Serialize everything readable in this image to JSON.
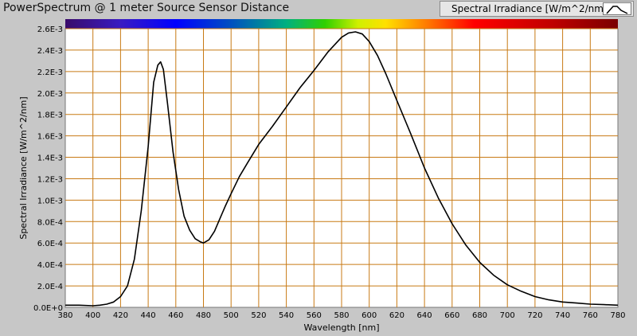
{
  "window": {
    "title": "PowerSpectrum @ 1 meter Source Sensor Distance"
  },
  "legend": {
    "label": "Spectral Irradiance [W/m^2/nm]",
    "swatch_icon": "line-plot-icon"
  },
  "chart_data": {
    "type": "line",
    "title": "PowerSpectrum @ 1 meter Source Sensor Distance",
    "xlabel": "Wavelength [nm]",
    "ylabel": "Spectral Irradiance [W/m^2/nm]",
    "xlim": [
      380,
      780
    ],
    "ylim": [
      0,
      0.0026
    ],
    "x_ticks": [
      "380",
      "400",
      "420",
      "440",
      "460",
      "480",
      "500",
      "520",
      "540",
      "560",
      "580",
      "600",
      "620",
      "640",
      "660",
      "680",
      "700",
      "720",
      "740",
      "760",
      "780"
    ],
    "y_ticks": [
      "0.0E+0",
      "2.0E-4",
      "4.0E-4",
      "6.0E-4",
      "8.0E-4",
      "1.0E-3",
      "1.2E-3",
      "1.4E-3",
      "1.6E-3",
      "1.8E-3",
      "2.0E-3",
      "2.2E-3",
      "2.4E-3",
      "2.6E-3"
    ],
    "grid": true,
    "legend_position": "top-right",
    "colors": {
      "plot_background": "#ffffff",
      "grid": "#c87a14",
      "line": "#000000"
    },
    "series": [
      {
        "name": "Spectral Irradiance [W/m^2/nm]",
        "x": [
          380,
          390,
          400,
          405,
          410,
          415,
          420,
          425,
          430,
          435,
          440,
          444,
          447,
          449,
          451,
          454,
          458,
          462,
          466,
          470,
          474,
          478,
          480,
          484,
          488,
          492,
          496,
          500,
          506,
          512,
          520,
          530,
          540,
          550,
          560,
          570,
          580,
          585,
          590,
          595,
          600,
          606,
          612,
          620,
          630,
          640,
          650,
          660,
          670,
          680,
          690,
          700,
          710,
          720,
          730,
          740,
          750,
          760,
          770,
          780
        ],
        "values": [
          2e-05,
          2e-05,
          1.5e-05,
          2e-05,
          3e-05,
          5e-05,
          0.0001,
          0.0002,
          0.00045,
          0.0009,
          0.0015,
          0.0021,
          0.00226,
          0.00229,
          0.00222,
          0.0019,
          0.00145,
          0.0011,
          0.00085,
          0.00072,
          0.00064,
          0.00061,
          0.0006,
          0.00063,
          0.00071,
          0.00083,
          0.00095,
          0.00106,
          0.00122,
          0.00135,
          0.00152,
          0.00169,
          0.00187,
          0.00205,
          0.00221,
          0.00238,
          0.00252,
          0.00256,
          0.00257,
          0.00255,
          0.00248,
          0.00235,
          0.00218,
          0.00193,
          0.00162,
          0.0013,
          0.00102,
          0.00078,
          0.00058,
          0.00042,
          0.0003,
          0.00021,
          0.00015,
          0.0001,
          7e-05,
          5e-05,
          4e-05,
          3e-05,
          2.5e-05,
          2e-05
        ]
      }
    ]
  }
}
